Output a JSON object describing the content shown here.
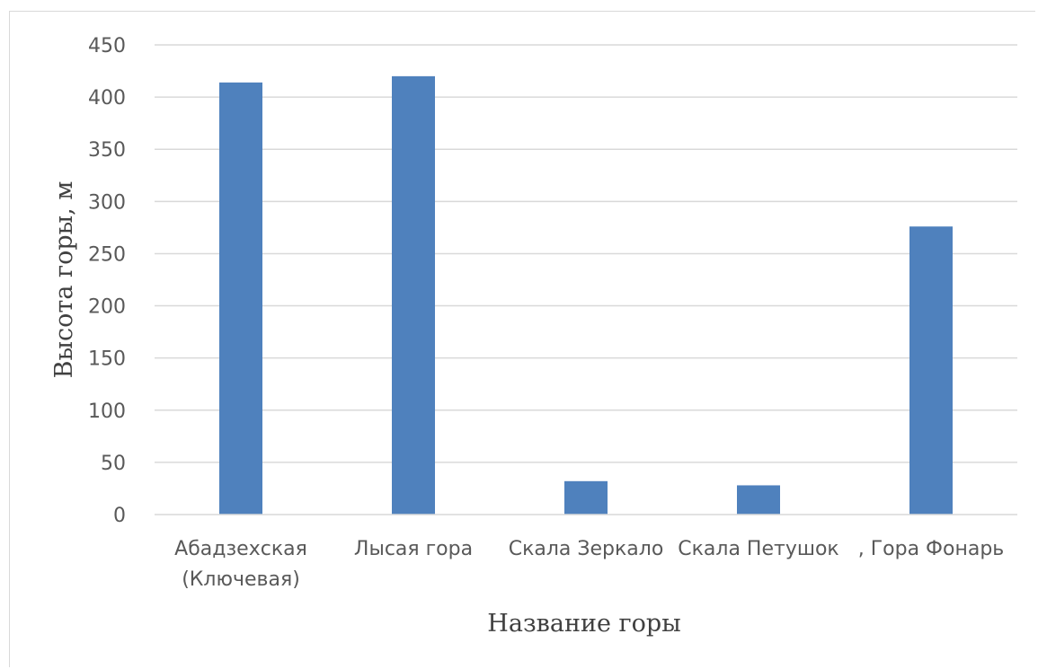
{
  "chart_data": {
    "type": "bar",
    "categories": [
      [
        "Абадзехская",
        "(Ключевая)"
      ],
      [
        "Лысая гора"
      ],
      [
        "Скала Зеркало"
      ],
      [
        "Скала Петушок"
      ],
      [
        ", Гора Фонарь"
      ]
    ],
    "values": [
      414,
      420,
      32,
      28,
      276
    ],
    "xlabel": "Название горы",
    "ylabel": "Высота горы, м",
    "ylim": [
      0,
      450
    ],
    "yticks": [
      0,
      50,
      100,
      150,
      200,
      250,
      300,
      350,
      400,
      450
    ],
    "grid": true,
    "bar_color": "#4f81bd",
    "legend": "none"
  }
}
